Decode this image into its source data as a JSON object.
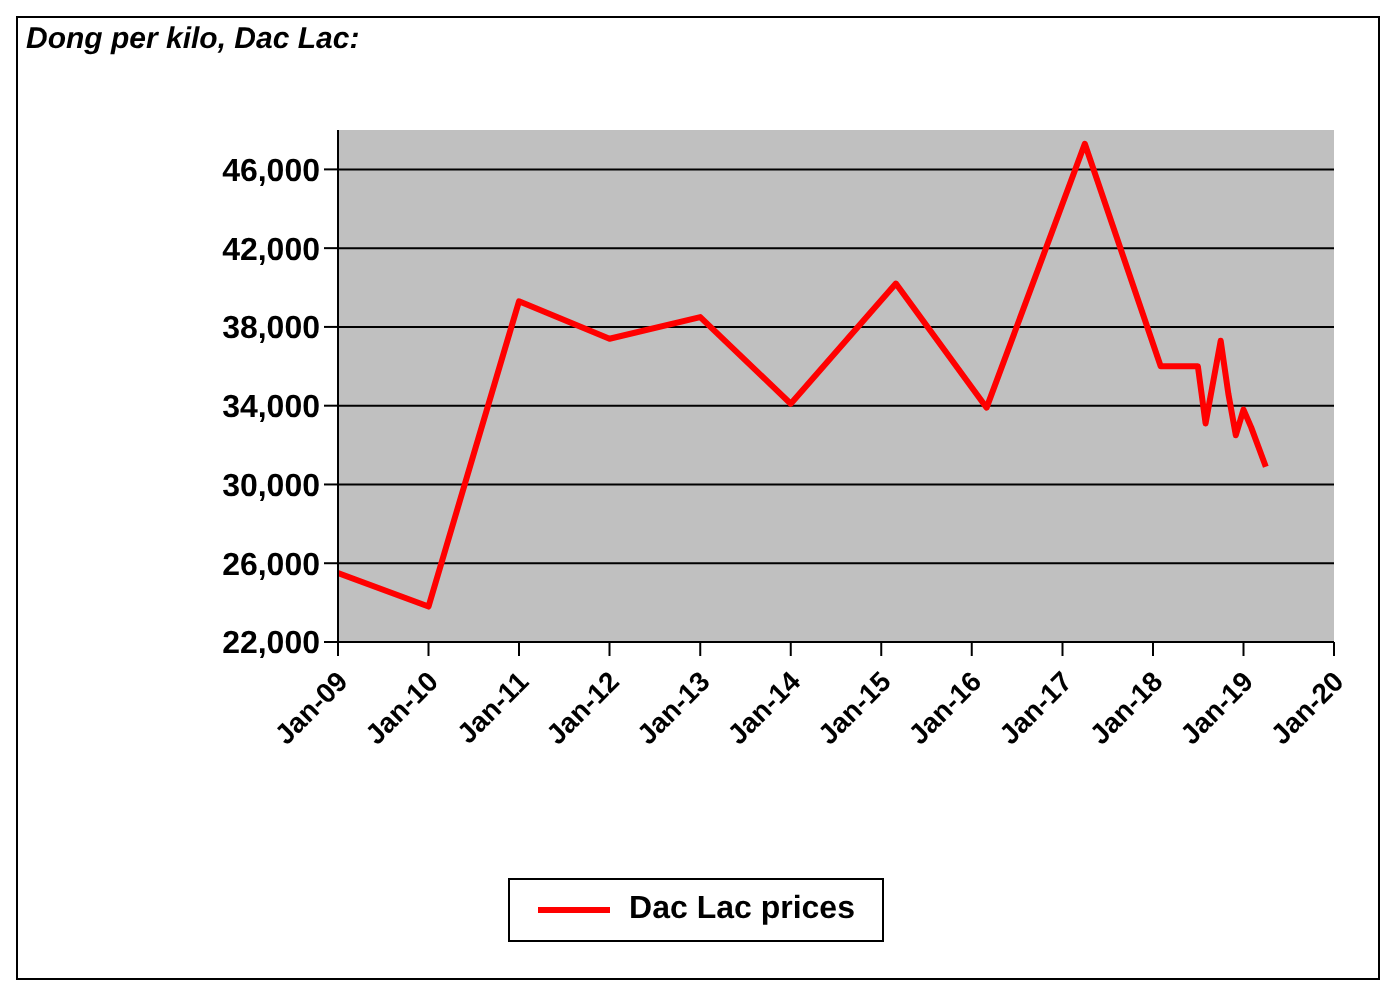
{
  "chart_data": {
    "type": "line",
    "title": "Dong per kilo, Dac Lac:",
    "x": [
      "2009-01",
      "2010-01",
      "2011-01",
      "2012-01",
      "2013-01",
      "2014-01",
      "2015-03",
      "2016-03",
      "2017-04",
      "2018-02",
      "2018-07",
      "2018-08",
      "2018-10",
      "2018-11",
      "2018-12",
      "2019-01",
      "2019-02",
      "2019-04"
    ],
    "series": [
      {
        "name": "Dac Lac prices",
        "color": "#ff0000",
        "values": [
          25500,
          23800,
          39300,
          37400,
          38500,
          34100,
          40200,
          33900,
          47300,
          36000,
          36000,
          33100,
          37300,
          34600,
          32500,
          33800,
          32900,
          30900
        ]
      }
    ],
    "xlim": [
      "2009-01",
      "2020-01"
    ],
    "xticks": [
      {
        "value": "2009-01",
        "label": "Jan-09"
      },
      {
        "value": "2010-01",
        "label": "Jan-10"
      },
      {
        "value": "2011-01",
        "label": "Jan-11"
      },
      {
        "value": "2012-01",
        "label": "Jan-12"
      },
      {
        "value": "2013-01",
        "label": "Jan-13"
      },
      {
        "value": "2014-01",
        "label": "Jan-14"
      },
      {
        "value": "2015-01",
        "label": "Jan-15"
      },
      {
        "value": "2016-01",
        "label": "Jan-16"
      },
      {
        "value": "2017-01",
        "label": "Jan-17"
      },
      {
        "value": "2018-01",
        "label": "Jan-18"
      },
      {
        "value": "2019-01",
        "label": "Jan-19"
      },
      {
        "value": "2020-01",
        "label": "Jan-20"
      }
    ],
    "ylim": [
      22000,
      48000
    ],
    "yticks": [
      {
        "value": 22000,
        "label": "22,000"
      },
      {
        "value": 26000,
        "label": "26,000"
      },
      {
        "value": 30000,
        "label": "30,000"
      },
      {
        "value": 34000,
        "label": "34,000"
      },
      {
        "value": 38000,
        "label": "38,000"
      },
      {
        "value": 42000,
        "label": "42,000"
      },
      {
        "value": 46000,
        "label": "46,000"
      }
    ],
    "grid": "y",
    "legend": "bottom",
    "marker": "none",
    "line_style": "solid"
  }
}
